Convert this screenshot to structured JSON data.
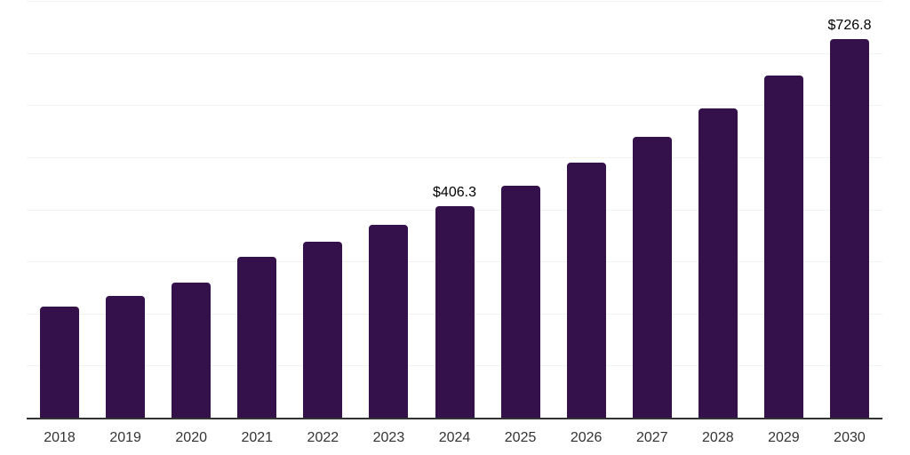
{
  "chart": {
    "background_color": "#ffffff",
    "bar_color": "#35114B",
    "grid_color": "#f2f1f4",
    "axis_color": "#333333",
    "tick_label_color": "#333333",
    "data_label_color": "#000000"
  },
  "chart_data": {
    "type": "bar",
    "title": "",
    "xlabel": "",
    "ylabel": "",
    "categories": [
      "2018",
      "2019",
      "2020",
      "2021",
      "2022",
      "2023",
      "2024",
      "2025",
      "2026",
      "2027",
      "2028",
      "2029",
      "2030"
    ],
    "values": [
      213,
      233,
      260,
      308,
      338,
      371,
      406.3,
      446,
      490,
      539,
      594,
      657,
      726.8
    ],
    "value_labels": [
      null,
      null,
      null,
      null,
      null,
      null,
      "$406.3",
      null,
      null,
      null,
      null,
      null,
      "$726.8"
    ],
    "ylim": [
      0,
      800
    ],
    "grid_step": 100,
    "grid": "horizontal",
    "y_axis_labels_visible": false,
    "legend_position": "none"
  }
}
